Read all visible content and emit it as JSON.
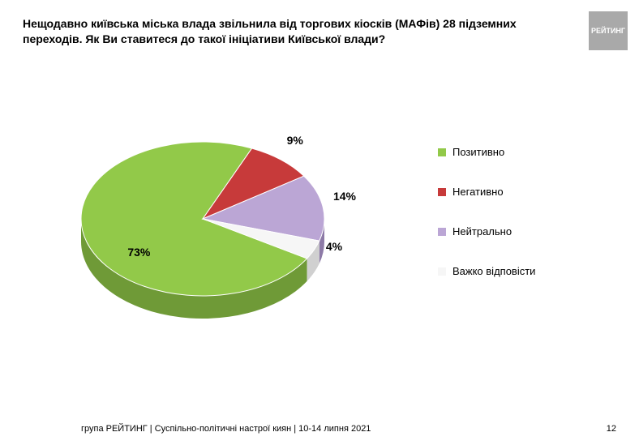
{
  "title": "Нещодавно київська міська влада звільнила від торгових кіосків (МАФів) 28 підземних переходів. Як Ви ставитеся до такої ініціативи Київської влади?",
  "logo_text": "РЕЙТИНГ",
  "footer_left": "група РЕЙТИНГ | Суспільно-політичні настрої киян | 10-14 липня 2021",
  "footer_page": "12",
  "chart": {
    "type": "pie-3d",
    "background_color": "#ffffff",
    "label_fontsize": 14,
    "legend_fontsize": 13,
    "slices": [
      {
        "label": "Позитивно",
        "value": 73,
        "display": "73%",
        "top_color": "#92c949",
        "side_color": "#6f9a37"
      },
      {
        "label": "Негативно",
        "value": 9,
        "display": "9%",
        "top_color": "#c73a3a",
        "side_color": "#992c2c"
      },
      {
        "label": "Нейтрально",
        "value": 14,
        "display": "14%",
        "top_color": "#bba6d5",
        "side_color": "#8d7aa7"
      },
      {
        "label": "Важко відповісти",
        "value": 4,
        "display": "4%",
        "top_color": "#f6f6f6",
        "side_color": "#d0d0d0"
      }
    ]
  }
}
